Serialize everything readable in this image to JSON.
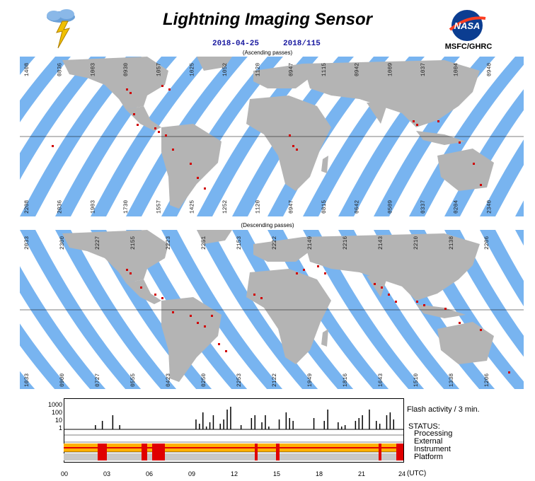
{
  "header": {
    "title": "Lightning Imaging Sensor",
    "date": "2018-04-25",
    "day_of_year": "2018/115",
    "org": "MSFC/GHRC",
    "logo_text": "NASA"
  },
  "maps": {
    "ascending": {
      "label": "(Ascending passes)",
      "top_times": [
        "1408",
        "0836",
        "1003",
        "0930",
        "1057",
        "1025",
        "1052",
        "1120",
        "0947",
        "1115",
        "0942",
        "1009",
        "1037",
        "1004",
        "0940"
      ],
      "bottom_times": [
        "2208",
        "2036",
        "1903",
        "1730",
        "1557",
        "1425",
        "1252",
        "1120",
        "0947",
        "0815",
        "0642",
        "0509",
        "0337",
        "0204",
        "2340"
      ]
    },
    "descending": {
      "label": "(Descending passes)",
      "top_times": [
        "2033",
        "2300",
        "2227",
        "2155",
        "2223",
        "2251",
        "2153",
        "2222",
        "2149",
        "2216",
        "2143",
        "2210",
        "2138",
        "2206"
      ],
      "bottom_times": [
        "1033",
        "0900",
        "0727",
        "0555",
        "0423",
        "0250",
        "2253",
        "2122",
        "1949",
        "1816",
        "1643",
        "1510",
        "1338",
        "1206"
      ]
    }
  },
  "status": {
    "flash_label": "Flash activity / 3 min.",
    "status_title": "STATUS:",
    "items": [
      "Processing",
      "External",
      "Instrument",
      "Platform"
    ],
    "y_ticks": [
      "1000",
      "100",
      "10",
      "1"
    ],
    "x_ticks": [
      "00",
      "03",
      "06",
      "09",
      "12",
      "15",
      "18",
      "21",
      "24"
    ],
    "x_unit": "(UTC)"
  },
  "colors": {
    "swath": "#78b4f0",
    "land": "#b4b4b4",
    "swath_land": "#f8d890",
    "flash": "#d00000",
    "instrument_bar": "#ffb000",
    "platform_red": "#e00000"
  }
}
